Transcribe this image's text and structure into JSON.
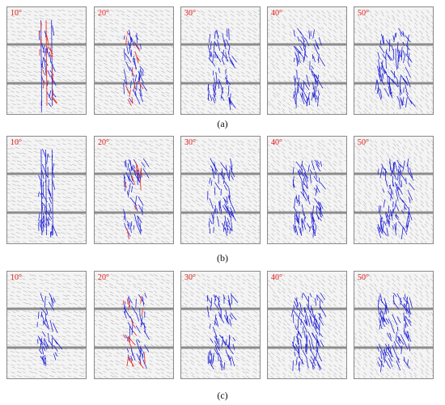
{
  "rows": [
    {
      "caption": "(a)",
      "panels": [
        {
          "angle": "10°",
          "spread": 0.1,
          "density": 0.25,
          "red": 0.9
        },
        {
          "angle": "20°",
          "spread": 0.25,
          "density": 0.45,
          "red": 0.55
        },
        {
          "angle": "30°",
          "spread": 0.35,
          "density": 0.5,
          "red": 0.0
        },
        {
          "angle": "40°",
          "spread": 0.4,
          "density": 0.65,
          "red": 0.0
        },
        {
          "angle": "50°",
          "spread": 0.55,
          "density": 0.8,
          "red": 0.0
        }
      ]
    },
    {
      "caption": "(b)",
      "panels": [
        {
          "angle": "10°",
          "spread": 0.15,
          "density": 0.3,
          "red": 0.0
        },
        {
          "angle": "20°",
          "spread": 0.25,
          "density": 0.45,
          "red": 0.5
        },
        {
          "angle": "30°",
          "spread": 0.35,
          "density": 0.55,
          "red": 0.0
        },
        {
          "angle": "40°",
          "spread": 0.45,
          "density": 0.7,
          "red": 0.0
        },
        {
          "angle": "50°",
          "spread": 0.55,
          "density": 0.85,
          "red": 0.0
        }
      ]
    },
    {
      "caption": "(c)",
      "panels": [
        {
          "angle": "10°",
          "spread": 0.2,
          "density": 0.25,
          "red": 0.0
        },
        {
          "angle": "20°",
          "spread": 0.3,
          "density": 0.45,
          "red": 0.6
        },
        {
          "angle": "30°",
          "spread": 0.4,
          "density": 0.55,
          "red": 0.0
        },
        {
          "angle": "40°",
          "spread": 0.45,
          "density": 0.95,
          "red": 0.0
        },
        {
          "angle": "50°",
          "spread": 0.55,
          "density": 0.75,
          "red": 0.0
        }
      ]
    }
  ],
  "colors": {
    "crack": "#2323d8",
    "failure": "#e83a2a",
    "joint": "#b8b8b8",
    "band": "#8c8c8c",
    "label": "#e0201c"
  }
}
